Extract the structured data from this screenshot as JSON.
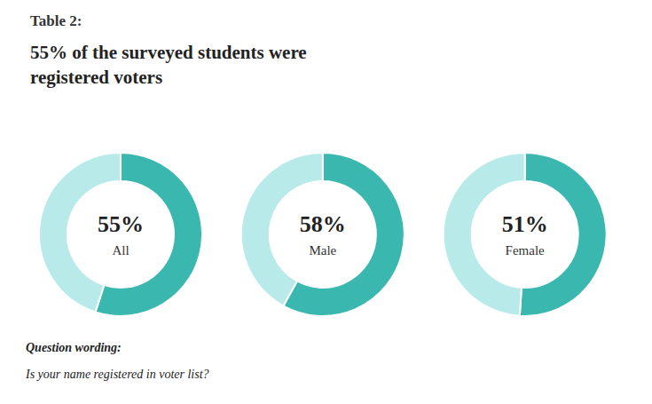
{
  "title": "55% of the surveyed students were\nregistered voters",
  "annotations": [
    "Table 2:",
    "Question wording:",
    "Is your name registered in voter list?"
  ],
  "chart_data": [
    {
      "type": "pie",
      "title": "All",
      "values": [
        55,
        45
      ],
      "value_labels": [
        "55%",
        null
      ],
      "colors": [
        "#3ab8b0",
        "#b8eaea"
      ]
    },
    {
      "type": "pie",
      "title": "Male",
      "values": [
        58,
        42
      ],
      "value_labels": [
        "58%",
        null
      ],
      "colors": [
        "#3ab8b0",
        "#b8eaea"
      ]
    },
    {
      "type": "pie",
      "title": "Female",
      "values": [
        51,
        49
      ],
      "value_labels": [
        "51%",
        null
      ],
      "colors": [
        "#3ab8b0",
        "#b8eaea"
      ]
    }
  ]
}
